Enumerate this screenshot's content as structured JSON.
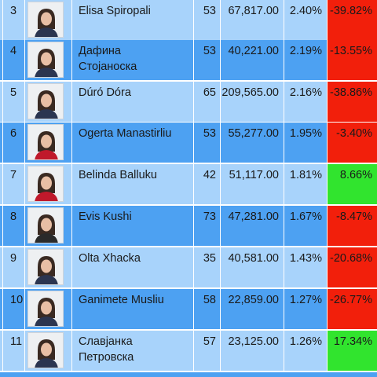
{
  "rows": [
    {
      "rank": "3",
      "name": "Elisa Spiropali",
      "age": "53",
      "votes": "67,817.00",
      "pct": "2.40%",
      "change": "-39.82%",
      "change_sign": "neg",
      "photo": "woman-portrait-icon"
    },
    {
      "rank": "4",
      "name": "Дафина\nСтојаноска",
      "age": "53",
      "votes": "40,221.00",
      "pct": "2.19%",
      "change": "-13.55%",
      "change_sign": "neg",
      "photo": "woman-portrait-icon"
    },
    {
      "rank": "5",
      "name": "Dúró Dóra",
      "age": "65",
      "votes": "209,565.00",
      "pct": "2.16%",
      "change": "-38.86%",
      "change_sign": "neg",
      "photo": "woman-portrait-icon"
    },
    {
      "rank": "6",
      "name": "Ogerta Manastirliu",
      "age": "53",
      "votes": "55,277.00",
      "pct": "1.95%",
      "change": "-3.40%",
      "change_sign": "neg",
      "photo": "woman-portrait-icon"
    },
    {
      "rank": "7",
      "name": "Belinda Balluku",
      "age": "42",
      "votes": "51,117.00",
      "pct": "1.81%",
      "change": "8.66%",
      "change_sign": "pos",
      "photo": "woman-portrait-icon"
    },
    {
      "rank": "8",
      "name": "Evis Kushi",
      "age": "73",
      "votes": "47,281.00",
      "pct": "1.67%",
      "change": "-8.47%",
      "change_sign": "neg",
      "photo": "woman-portrait-icon"
    },
    {
      "rank": "9",
      "name": "Olta Xhacka",
      "age": "35",
      "votes": "40,581.00",
      "pct": "1.43%",
      "change": "-20.68%",
      "change_sign": "neg",
      "photo": "woman-portrait-icon"
    },
    {
      "rank": "10",
      "name": "Ganimete Musliu",
      "age": "58",
      "votes": "22,859.00",
      "pct": "1.27%",
      "change": "-26.77%",
      "change_sign": "neg",
      "photo": "woman-portrait-icon"
    },
    {
      "rank": "11",
      "name": "Славјанка\nПетровска",
      "age": "57",
      "votes": "23,125.00",
      "pct": "1.26%",
      "change": "17.34%",
      "change_sign": "pos",
      "photo": "woman-portrait-icon"
    }
  ],
  "colors": {
    "row_light": "#a8d3fb",
    "row_dark": "#4da1f2",
    "negative": "#f21f0b",
    "positive": "#31e42e"
  }
}
